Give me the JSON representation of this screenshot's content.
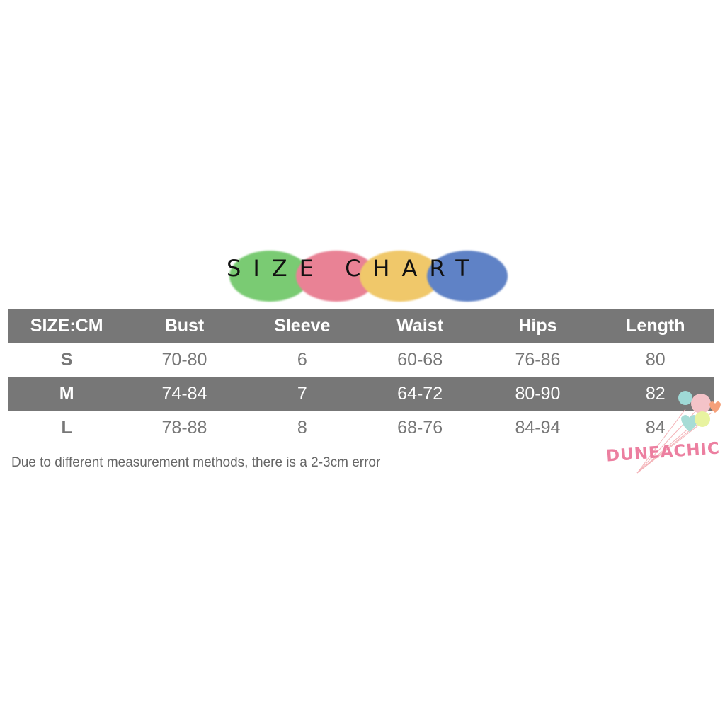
{
  "title": {
    "text": "SIZE CHART",
    "blob_colors": [
      "#7acb73",
      "#e98295",
      "#f0c86a",
      "#5f82c6"
    ]
  },
  "table": {
    "headers": [
      "SIZE:CM",
      "Bust",
      "Sleeve",
      "Waist",
      "Hips",
      "Length"
    ],
    "rows": [
      [
        "S",
        "70-80",
        "6",
        "60-68",
        "76-86",
        "80"
      ],
      [
        "M",
        "74-84",
        "7",
        "64-72",
        "80-90",
        "82"
      ],
      [
        "L",
        "78-88",
        "8",
        "68-76",
        "84-94",
        "84"
      ]
    ],
    "band_color": "#777777"
  },
  "note": "Due to different measurement methods, there is a 2-3cm error",
  "logo": {
    "text": "DUNEACHIC",
    "icon": "balloons-icon"
  }
}
